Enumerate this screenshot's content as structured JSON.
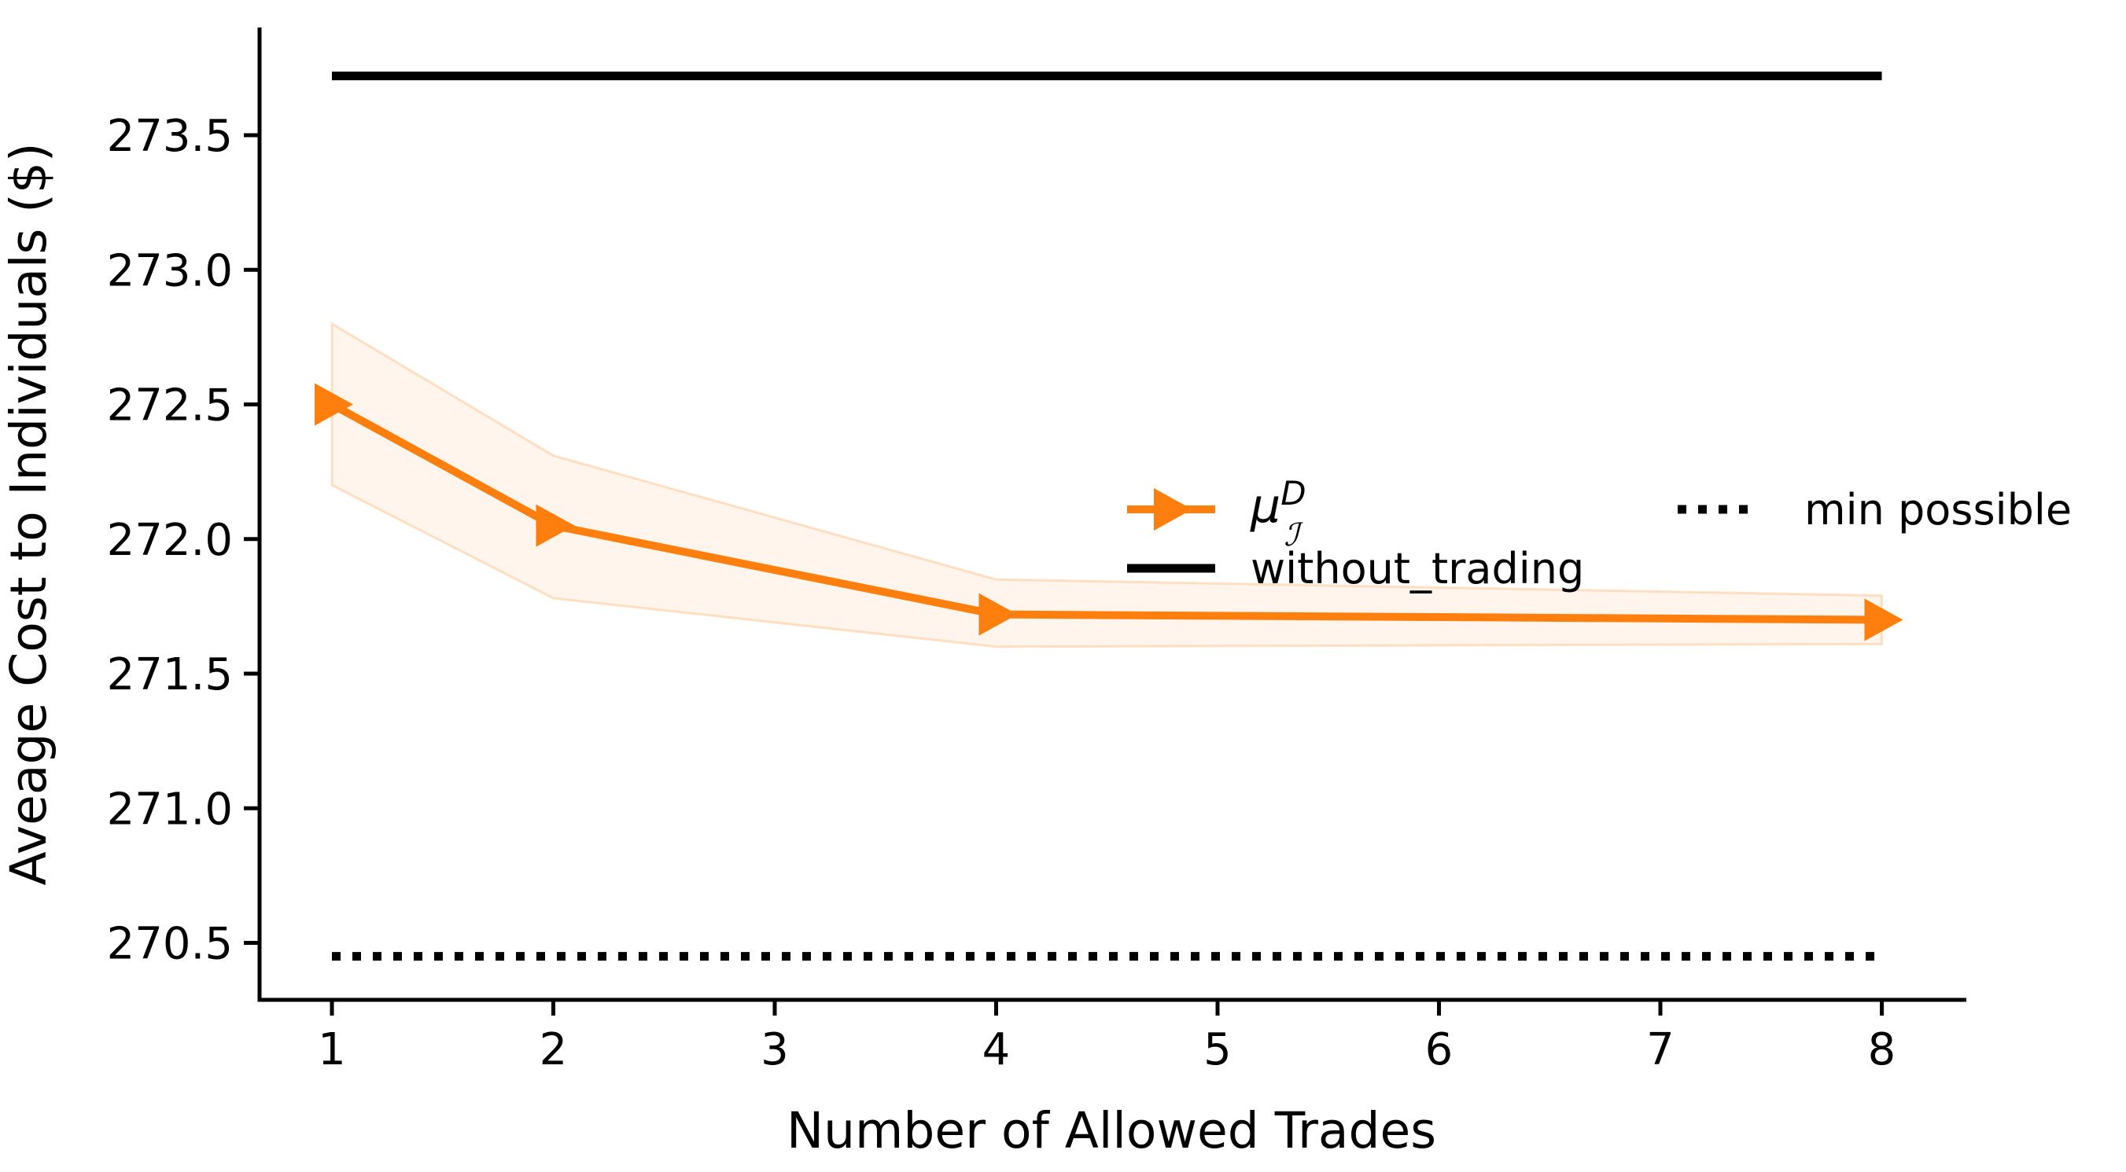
{
  "chart_data": {
    "type": "line",
    "title": "",
    "xlabel": "Number of Allowed Trades",
    "ylabel": "Aveage Cost to Individuals ($)",
    "x_tick_values": [
      1,
      2,
      3,
      4,
      5,
      6,
      7,
      8
    ],
    "x_tick_labels": [
      "1",
      "2",
      "3",
      "4",
      "5",
      "6",
      "7",
      "8"
    ],
    "y_tick_values": [
      270.5,
      271.0,
      271.5,
      272.0,
      272.5,
      273.0,
      273.5
    ],
    "y_tick_labels": [
      "270.5",
      "271.0",
      "271.5",
      "272.0",
      "272.5",
      "273.0",
      "273.5"
    ],
    "xlim": [
      0.67,
      8.38
    ],
    "ylim": [
      270.29,
      273.9
    ],
    "grid": false,
    "background_color": "#ffffff",
    "axis_color": "#000000",
    "accent_color": "#ff7f0e",
    "series": [
      {
        "name": "mu_I_D",
        "kind": "line-with-band",
        "color": "#ff7f0e",
        "marker": "right-triangle",
        "x": [
          1,
          2,
          4,
          8
        ],
        "y": [
          272.5,
          272.05,
          271.72,
          271.7
        ],
        "band_upper": [
          272.8,
          272.31,
          271.85,
          271.79
        ],
        "band_lower": [
          272.2,
          271.78,
          271.6,
          271.61
        ]
      },
      {
        "name": "without_trading",
        "kind": "hline",
        "line_style": "solid",
        "color": "#000000",
        "x": [
          1,
          8
        ],
        "y": 273.72
      },
      {
        "name": "min_possible",
        "kind": "hline",
        "line_style": "dotted",
        "color": "#000000",
        "x": [
          1,
          8
        ],
        "y": 270.45
      }
    ],
    "legend": {
      "position": "center-right",
      "columns": 2,
      "frame": false,
      "entries": [
        {
          "id": "mu",
          "sample": "arrow-line",
          "color": "#ff7f0e",
          "math_label": {
            "base": "μ",
            "sup": "D",
            "sub": "ℐ"
          }
        },
        {
          "id": "without-trading",
          "sample": "solid-line",
          "color": "#000000",
          "label": "without_trading"
        },
        {
          "id": "min-possible",
          "sample": "dotted-line",
          "color": "#000000",
          "label": "min possible"
        }
      ]
    }
  }
}
